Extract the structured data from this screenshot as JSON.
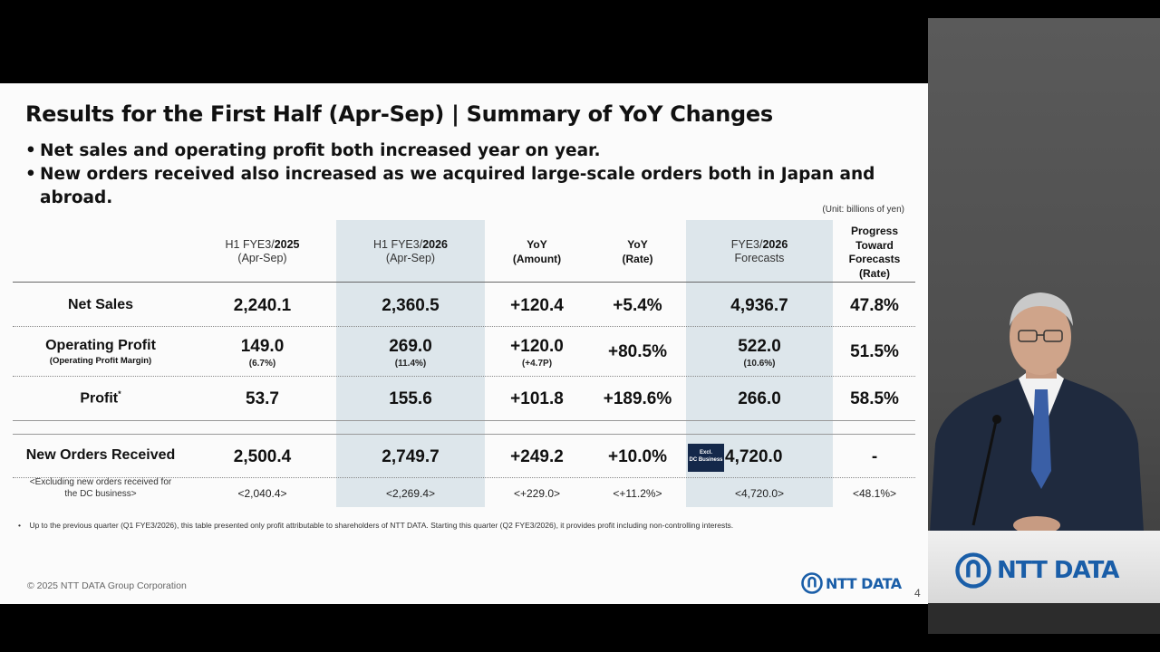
{
  "slide": {
    "title": "Results for the First Half (Apr-Sep) | Summary of YoY Changes",
    "bullets": [
      "Net sales and operating profit both increased year on year.",
      "New orders received also increased as we acquired large-scale orders both in Japan and abroad."
    ],
    "unit": "(Unit: billions of yen)",
    "headers": {
      "h1_2025": {
        "pre": "H1 FYE3/",
        "year": "2025",
        "sub": "(Apr-Sep)"
      },
      "h1_2026": {
        "pre": "H1 FYE3/",
        "year": "2026",
        "sub": "(Apr-Sep)"
      },
      "yoy_amount": {
        "l1": "YoY",
        "l2": "(Amount)"
      },
      "yoy_rate": {
        "l1": "YoY",
        "l2": "(Rate)"
      },
      "forecast": {
        "pre": "FYE3/",
        "year": "2026",
        "sub": "Forecasts"
      },
      "progress": {
        "l1": "Progress",
        "l2": "Toward",
        "l3": "Forecasts",
        "l4": "(Rate)"
      }
    },
    "rows": {
      "net_sales": {
        "label": "Net Sales",
        "h1_2025": "2,240.1",
        "h1_2026": "2,360.5",
        "yoy_amount": "+120.4",
        "yoy_rate": "+5.4%",
        "forecast": "4,936.7",
        "progress": "47.8%"
      },
      "operating_profit": {
        "label": "Operating Profit",
        "sublabel": "(Operating Profit Margin)",
        "h1_2025": "149.0",
        "h1_2025_sub": "(6.7%)",
        "h1_2026": "269.0",
        "h1_2026_sub": "(11.4%)",
        "yoy_amount": "+120.0",
        "yoy_amount_sub": "(+4.7P)",
        "yoy_rate": "+80.5%",
        "forecast": "522.0",
        "forecast_sub": "(10.6%)",
        "progress": "51.5%"
      },
      "profit": {
        "label": "Profit",
        "mark": "*",
        "h1_2025": "53.7",
        "h1_2026": "155.6",
        "yoy_amount": "+101.8",
        "yoy_rate": "+189.6%",
        "forecast": "266.0",
        "progress": "58.5%"
      },
      "new_orders": {
        "label": "New Orders Received",
        "h1_2025": "2,500.4",
        "h1_2026": "2,749.7",
        "yoy_amount": "+249.2",
        "yoy_rate": "+10.0%",
        "badge_l1": "Excl.",
        "badge_l2": "DC Business",
        "forecast": "4,720.0",
        "progress": "-"
      },
      "excl_dc": {
        "label_l1": "<Excluding new orders received for",
        "label_l2": "the DC business>",
        "h1_2025": "<2,040.4>",
        "h1_2026": "<2,269.4>",
        "yoy_amount": "<+229.0>",
        "yoy_rate": "<+11.2%>",
        "forecast": "<4,720.0>",
        "progress": "<48.1%>"
      }
    },
    "footnote": "Up to the previous quarter (Q1 FYE3/2026), this table presented only profit attributable to shareholders of NTT DATA. Starting this quarter (Q2 FYE3/2026), it provides profit including non-controlling interests.",
    "footnote_bullet": "•",
    "copyright": "© 2025 NTT DATA Group Corporation",
    "logo_text": "NTT DATA",
    "page_number": "4"
  },
  "speaker_panel": {
    "podium_logo_text": "NTT DATA",
    "brand_color": "#1a5ea8"
  }
}
